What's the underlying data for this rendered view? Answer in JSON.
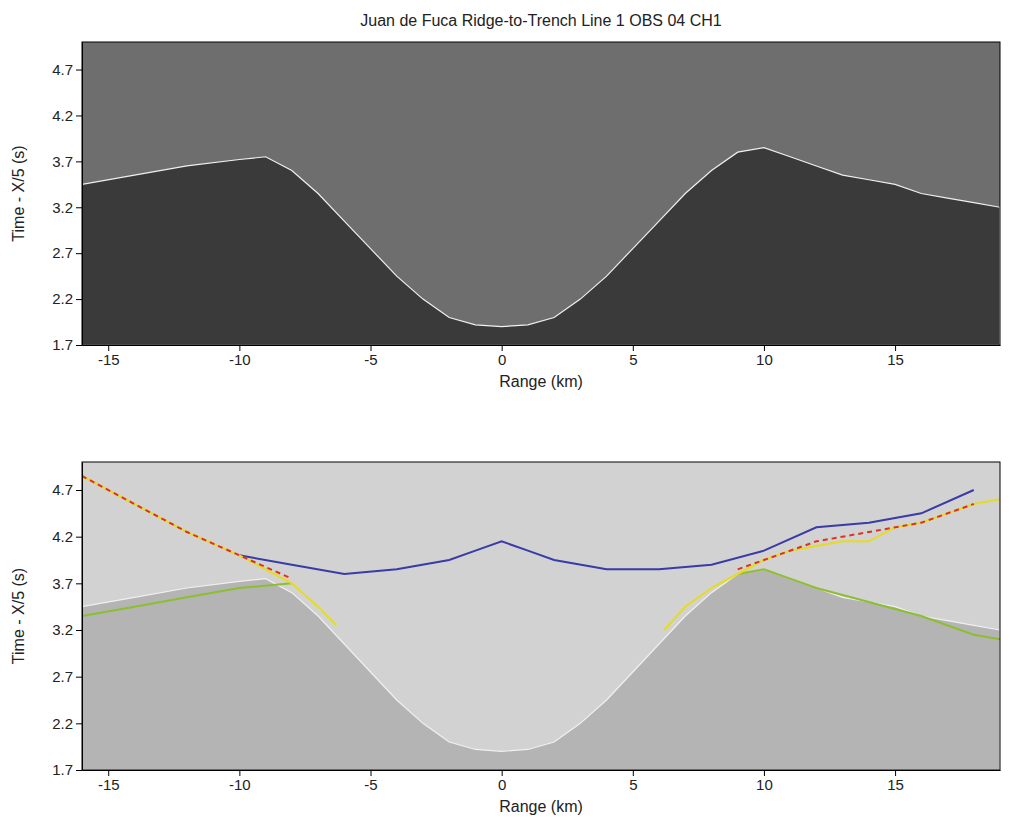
{
  "chart_data": [
    {
      "type": "line",
      "title": "Juan de Fuca Ridge-to-Trench Line 1 OBS 04 CH1",
      "x_label": "Range (km)",
      "y_label": "Time - X/5 (s)",
      "xlim": [
        -16,
        19
      ],
      "ylim": [
        1.7,
        5.0
      ],
      "xticks": [
        -15,
        -10,
        -5,
        0,
        5,
        10,
        15
      ],
      "yticks": [
        1.7,
        2.2,
        2.7,
        3.2,
        3.7,
        4.2,
        4.7
      ],
      "series": [
        {
          "type": "area",
          "color": "#3a3a3a",
          "x": [
            -16,
            -14,
            -12,
            -10,
            -9,
            -8,
            -7,
            -6,
            -5,
            -4,
            -3,
            -2,
            -1,
            0,
            1,
            2,
            3,
            4,
            5,
            6,
            7,
            8,
            9,
            10,
            11,
            12,
            13,
            14,
            15,
            16,
            17,
            18,
            19
          ],
          "values": [
            3.45,
            3.55,
            3.65,
            3.72,
            3.75,
            3.6,
            3.35,
            3.05,
            2.75,
            2.45,
            2.2,
            2.0,
            1.92,
            1.9,
            1.92,
            2.0,
            2.2,
            2.45,
            2.75,
            3.05,
            3.35,
            3.6,
            3.8,
            3.85,
            3.75,
            3.65,
            3.55,
            3.5,
            3.45,
            3.35,
            3.3,
            3.25,
            3.2
          ]
        }
      ]
    },
    {
      "type": "line",
      "x_label": "Range (km)",
      "y_label": "Time - X/5 (s)",
      "xlim": [
        -16,
        19
      ],
      "ylim": [
        1.7,
        5.0
      ],
      "xticks": [
        -15,
        -10,
        -5,
        0,
        5,
        10,
        15
      ],
      "yticks": [
        1.7,
        2.2,
        2.7,
        3.2,
        3.7,
        4.2,
        4.7
      ],
      "series": [
        {
          "type": "area",
          "color": "#b4b4b4",
          "x": [
            -16,
            -14,
            -12,
            -10,
            -9,
            -8,
            -7,
            -6,
            -5,
            -4,
            -3,
            -2,
            -1,
            0,
            1,
            2,
            3,
            4,
            5,
            6,
            7,
            8,
            9,
            10,
            11,
            12,
            13,
            14,
            15,
            16,
            17,
            18,
            19
          ],
          "values": [
            3.45,
            3.55,
            3.65,
            3.72,
            3.75,
            3.6,
            3.35,
            3.05,
            2.75,
            2.45,
            2.2,
            2.0,
            1.92,
            1.9,
            1.92,
            2.0,
            2.2,
            2.45,
            2.75,
            3.05,
            3.35,
            3.6,
            3.8,
            3.85,
            3.75,
            3.65,
            3.55,
            3.5,
            3.45,
            3.35,
            3.3,
            3.25,
            3.2
          ]
        },
        {
          "type": "line",
          "color": "#3a3aa8",
          "line_style": "solid",
          "x": [
            -10,
            -8,
            -6,
            -4,
            -2,
            -1,
            0,
            1,
            2,
            4,
            6,
            8,
            10,
            12,
            14,
            16,
            18
          ],
          "values": [
            4.0,
            3.9,
            3.8,
            3.85,
            3.95,
            4.05,
            4.15,
            4.05,
            3.95,
            3.85,
            3.85,
            3.9,
            4.05,
            4.3,
            4.35,
            4.45,
            4.7
          ]
        },
        {
          "type": "line",
          "color": "#8cbf2e",
          "line_style": "solid",
          "x": [
            -16,
            -14,
            -12,
            -10,
            -8
          ],
          "values": [
            3.35,
            3.45,
            3.55,
            3.65,
            3.7
          ]
        },
        {
          "type": "line",
          "color": "#8cbf2e",
          "line_style": "solid",
          "x": [
            9,
            10,
            11,
            12,
            14,
            16,
            18,
            19
          ],
          "values": [
            3.8,
            3.85,
            3.75,
            3.65,
            3.5,
            3.35,
            3.15,
            3.1
          ]
        },
        {
          "type": "line",
          "color": "#e6dc1e",
          "line_style": "solid",
          "x": [
            -16,
            -14,
            -12,
            -10,
            -9,
            -8,
            -7,
            -6.3
          ],
          "values": [
            4.85,
            4.55,
            4.25,
            4.0,
            3.85,
            3.7,
            3.45,
            3.25
          ]
        },
        {
          "type": "line",
          "color": "#e6dc1e",
          "line_style": "solid",
          "x": [
            6.2,
            7,
            8,
            9,
            10,
            11,
            12,
            13,
            14,
            15,
            16,
            17,
            18,
            19
          ],
          "values": [
            3.2,
            3.45,
            3.65,
            3.8,
            3.95,
            4.05,
            4.1,
            4.15,
            4.15,
            4.3,
            4.35,
            4.45,
            4.55,
            4.6
          ]
        },
        {
          "type": "line",
          "color": "#e03020",
          "line_style": "dashed",
          "x": [
            -16,
            -14,
            -12,
            -10,
            -8
          ],
          "values": [
            4.85,
            4.55,
            4.25,
            4.0,
            3.75
          ]
        },
        {
          "type": "line",
          "color": "#e03020",
          "line_style": "dashed",
          "x": [
            9,
            10,
            12,
            14,
            16,
            18
          ],
          "values": [
            3.85,
            3.95,
            4.15,
            4.25,
            4.35,
            4.55
          ]
        }
      ]
    }
  ]
}
